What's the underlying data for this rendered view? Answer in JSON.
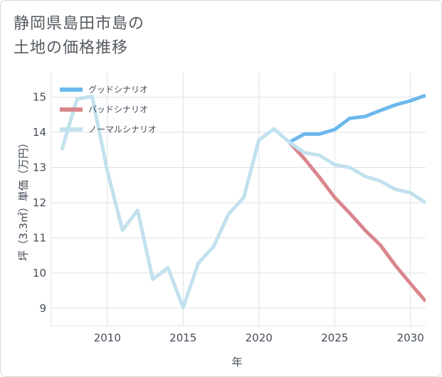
{
  "title_lines": [
    "静岡県島田市島の",
    "土地の価格推移"
  ],
  "colors": {
    "good": "#6cb8ec",
    "bad": "#d9868c",
    "normal": "#c2e1ee",
    "grid": "#dde1e6",
    "axis": "#444c58"
  },
  "chart_data": {
    "type": "line",
    "title": "静岡県島田市島の土地の価格推移",
    "xlabel": "年",
    "ylabel": "坪（3.3㎡）単価（万円）",
    "xlim": [
      2006.3,
      2031
    ],
    "ylim": [
      8.5,
      15.7
    ],
    "xticks": [
      2010,
      2015,
      2020,
      2025,
      2030
    ],
    "yticks": [
      9,
      10,
      11,
      12,
      13,
      14,
      15
    ],
    "legend": [
      "グッドシナリオ",
      "バッドシナリオ",
      "ノーマルシナリオ"
    ],
    "series": [
      {
        "name": "グッドシナリオ",
        "key": "good",
        "x": [
          2022,
          2023,
          2024,
          2025,
          2026,
          2027,
          2028,
          2029,
          2030,
          2031
        ],
        "values": [
          13.72,
          13.95,
          13.95,
          14.08,
          14.4,
          14.45,
          14.62,
          14.78,
          14.9,
          15.05
        ]
      },
      {
        "name": "バッドシナリオ",
        "key": "bad",
        "x": [
          2022,
          2023,
          2024,
          2025,
          2026,
          2027,
          2028,
          2029,
          2030,
          2031
        ],
        "values": [
          13.72,
          13.25,
          12.72,
          12.15,
          11.7,
          11.22,
          10.8,
          10.22,
          9.7,
          9.2
        ]
      },
      {
        "name": "ノーマルシナリオ",
        "key": "normal",
        "x": [
          2007,
          2008,
          2009,
          2010,
          2011,
          2012,
          2013,
          2014,
          2015,
          2016,
          2017,
          2018,
          2019,
          2020,
          2021,
          2022,
          2023,
          2024,
          2025,
          2026,
          2027,
          2028,
          2029,
          2030,
          2031
        ],
        "values": [
          13.5,
          14.95,
          15.02,
          12.9,
          11.22,
          11.78,
          9.82,
          10.15,
          9.02,
          10.28,
          10.75,
          11.68,
          12.15,
          13.78,
          14.1,
          13.72,
          13.42,
          13.35,
          13.08,
          13.0,
          12.75,
          12.62,
          12.38,
          12.28,
          12.0
        ]
      }
    ]
  }
}
